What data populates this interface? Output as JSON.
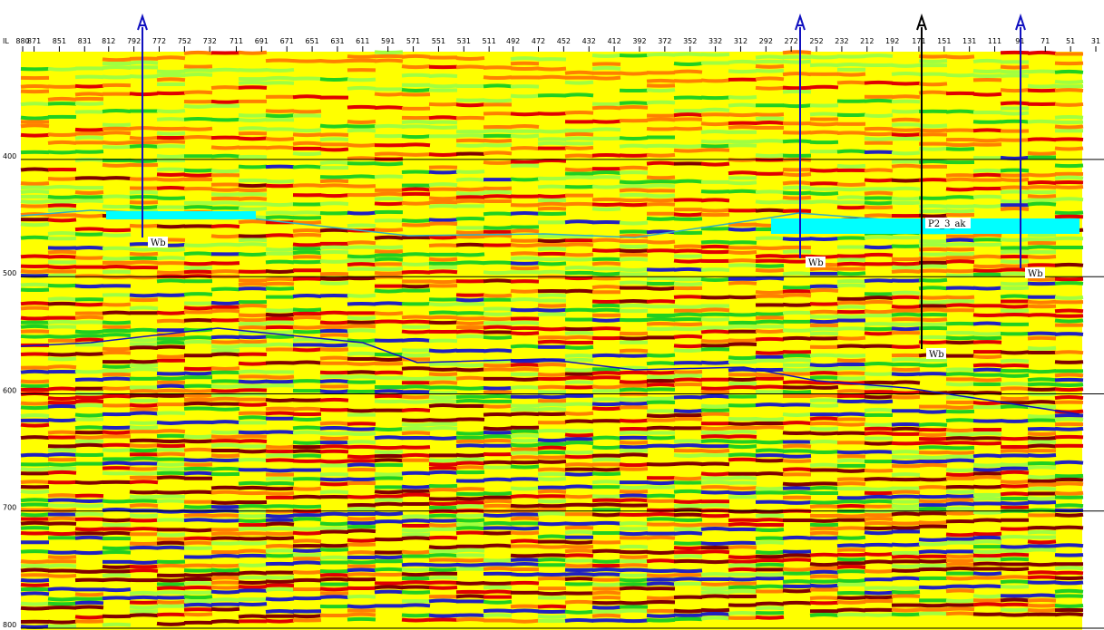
{
  "top_axis": {
    "prefix": "IL",
    "labels": [
      880,
      871,
      851,
      831,
      812,
      792,
      772,
      752,
      732,
      711,
      691,
      671,
      651,
      631,
      611,
      591,
      571,
      551,
      531,
      511,
      492,
      472,
      452,
      432,
      412,
      392,
      372,
      352,
      332,
      312,
      292,
      272,
      252,
      232,
      212,
      192,
      171,
      151,
      131,
      111,
      91,
      71,
      51,
      31
    ],
    "xlim": [
      880,
      31
    ]
  },
  "time_axis": {
    "labels": [
      400,
      500,
      600,
      700,
      800
    ],
    "ylim": [
      308,
      800
    ]
  },
  "wells": [
    {
      "label": "Wb"
    },
    {
      "label": "Wb"
    },
    {
      "label": "Wb"
    },
    {
      "label": "Wb"
    }
  ],
  "horizon_label": "P2_3_ak"
}
